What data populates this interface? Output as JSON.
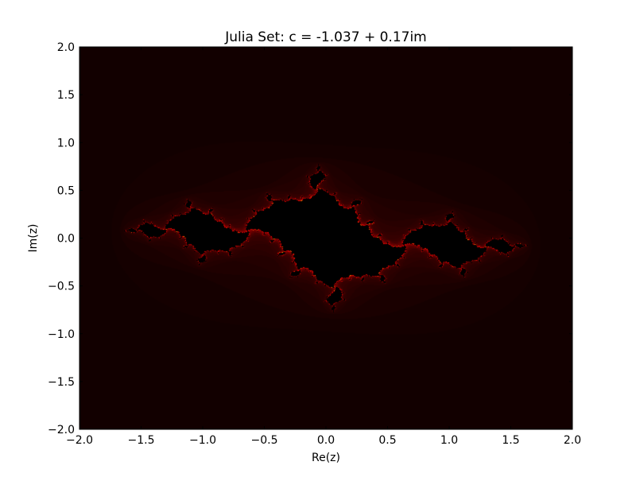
{
  "chart_data": {
    "type": "heatmap",
    "title": "Julia Set: c = -1.037 + 0.17im",
    "xlabel": "Re(z)",
    "ylabel": "Im(z)",
    "xlim": [
      -2.0,
      2.0
    ],
    "ylim": [
      -2.0,
      2.0
    ],
    "x_ticks": [
      "−2.0",
      "−1.5",
      "−1.0",
      "−0.5",
      "0.0",
      "0.5",
      "1.0",
      "1.5",
      "2.0"
    ],
    "y_ticks": [
      "2.0",
      "1.5",
      "1.0",
      "0.5",
      "0.0",
      "−0.5",
      "−1.0",
      "−1.5",
      "−2.0"
    ],
    "c_real": -1.037,
    "c_imag": 0.17,
    "max_iterations": 256,
    "colormap": [
      "#000000",
      "#3a0000",
      "#ff0000",
      "#ffff00",
      "#ffffff"
    ],
    "grid": false
  }
}
